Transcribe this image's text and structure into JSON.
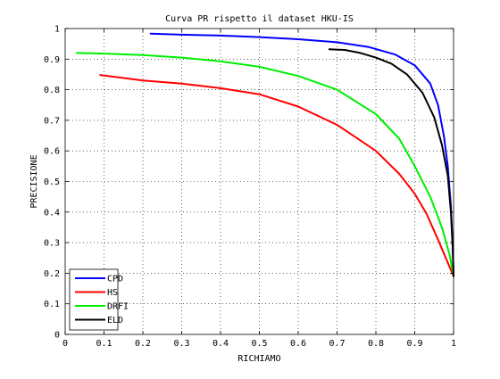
{
  "chart_data": {
    "type": "line",
    "title": "Curva PR rispetto il dataset HKU-IS",
    "xlabel": "RICHIAMO",
    "ylabel": "PRECISIONE",
    "xlim": [
      0,
      1
    ],
    "ylim": [
      0,
      1
    ],
    "xticks": [
      "0",
      "0.1",
      "0.2",
      "0.3",
      "0.4",
      "0.5",
      "0.6",
      "0.7",
      "0.8",
      "0.9",
      "1"
    ],
    "yticks": [
      "0",
      "0.1",
      "0.2",
      "0.3",
      "0.4",
      "0.5",
      "0.6",
      "0.7",
      "0.8",
      "0.9",
      "1"
    ],
    "grid": true,
    "legend_position": "bottom-left",
    "series": [
      {
        "name": "CPD",
        "color": "#0000ff",
        "x": [
          0.22,
          0.3,
          0.4,
          0.5,
          0.6,
          0.7,
          0.78,
          0.85,
          0.9,
          0.94,
          0.96,
          0.975,
          0.985,
          0.993,
          0.998,
          1.0
        ],
        "y": [
          0.983,
          0.98,
          0.977,
          0.972,
          0.965,
          0.955,
          0.94,
          0.915,
          0.88,
          0.82,
          0.75,
          0.65,
          0.55,
          0.42,
          0.28,
          0.19
        ]
      },
      {
        "name": "HS",
        "color": "#ff0000",
        "x": [
          0.09,
          0.2,
          0.3,
          0.4,
          0.5,
          0.6,
          0.7,
          0.8,
          0.86,
          0.9,
          0.93,
          0.96,
          0.98,
          1.0
        ],
        "y": [
          0.848,
          0.83,
          0.82,
          0.805,
          0.785,
          0.745,
          0.685,
          0.6,
          0.525,
          0.46,
          0.395,
          0.31,
          0.25,
          0.19
        ]
      },
      {
        "name": "DRFI",
        "color": "#00ee00",
        "x": [
          0.03,
          0.1,
          0.2,
          0.3,
          0.4,
          0.5,
          0.6,
          0.7,
          0.8,
          0.86,
          0.9,
          0.94,
          0.97,
          0.99,
          1.0
        ],
        "y": [
          0.92,
          0.918,
          0.913,
          0.905,
          0.893,
          0.875,
          0.845,
          0.8,
          0.72,
          0.64,
          0.55,
          0.45,
          0.35,
          0.26,
          0.19
        ]
      },
      {
        "name": "ELD",
        "color": "#000000",
        "x": [
          0.68,
          0.72,
          0.76,
          0.8,
          0.84,
          0.88,
          0.92,
          0.95,
          0.97,
          0.985,
          0.993,
          0.998,
          1.0
        ],
        "y": [
          0.932,
          0.93,
          0.92,
          0.905,
          0.885,
          0.85,
          0.79,
          0.71,
          0.62,
          0.52,
          0.4,
          0.28,
          0.19
        ]
      }
    ]
  }
}
